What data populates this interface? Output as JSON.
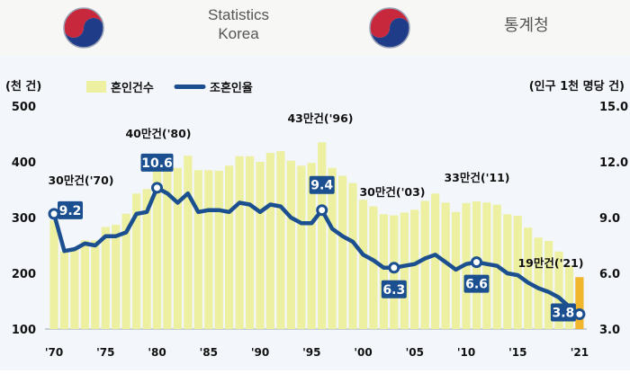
{
  "header": {
    "org_line1": "Statistics",
    "org_line2": "Korea",
    "org_korean": "통계청"
  },
  "chart_data": {
    "type": "bar",
    "left_axis_label": "(천 건)",
    "right_axis_label": "(인구 1천 명당 건)",
    "legend": {
      "bars": "혼인건수",
      "line": "조혼인율",
      "placement": "top-left"
    },
    "ylim_left": [
      100,
      500
    ],
    "ylim_right": [
      3.0,
      15.0
    ],
    "left_ticks": [
      "100",
      "200",
      "300",
      "400",
      "500"
    ],
    "right_ticks": [
      "3.0",
      "6.0",
      "9.0",
      "12.0",
      "15.0"
    ],
    "x_tick_labels": [
      "'70",
      "'75",
      "'80",
      "'85",
      "'90",
      "'95",
      "'00",
      "'05",
      "'10",
      "'15",
      "'21"
    ],
    "years": [
      1970,
      1971,
      1972,
      1973,
      1974,
      1975,
      1976,
      1977,
      1978,
      1979,
      1980,
      1981,
      1982,
      1983,
      1984,
      1985,
      1986,
      1987,
      1988,
      1989,
      1990,
      1991,
      1992,
      1993,
      1994,
      1995,
      1996,
      1997,
      1998,
      1999,
      2000,
      2001,
      2002,
      2003,
      2004,
      2005,
      2006,
      2007,
      2008,
      2009,
      2010,
      2011,
      2012,
      2013,
      2014,
      2015,
      2016,
      2017,
      2018,
      2019,
      2020,
      2021
    ],
    "marriages": [
      295,
      239,
      244,
      259,
      259,
      283,
      287,
      307,
      343,
      351,
      403,
      396,
      389,
      411,
      385,
      385,
      384,
      393,
      410,
      410,
      400,
      416,
      419,
      402,
      393,
      398,
      435,
      389,
      375,
      362,
      332,
      320,
      306,
      304,
      309,
      314,
      330,
      343,
      327,
      310,
      326,
      329,
      327,
      323,
      306,
      303,
      282,
      264,
      258,
      239,
      214,
      193
    ],
    "crude_rate": [
      9.2,
      7.2,
      7.3,
      7.6,
      7.5,
      8.0,
      8.0,
      8.2,
      9.2,
      9.3,
      10.6,
      10.3,
      9.8,
      10.3,
      9.3,
      9.4,
      9.4,
      9.3,
      9.8,
      9.7,
      9.3,
      9.7,
      9.6,
      9.0,
      8.7,
      8.7,
      9.4,
      8.4,
      8.0,
      7.7,
      7.0,
      6.7,
      6.3,
      6.3,
      6.4,
      6.5,
      6.8,
      7.0,
      6.6,
      6.2,
      6.5,
      6.6,
      6.5,
      6.4,
      6.0,
      5.9,
      5.5,
      5.2,
      5.0,
      4.7,
      4.2,
      3.8
    ],
    "highlight_year": 2021,
    "colors": {
      "bar": "#ecf0a0",
      "bar_highlight": "#f2b62c",
      "line": "#1b4f8f",
      "label_box": "#1b4f8f",
      "label_text": "#ffffff"
    },
    "bar_annotations": [
      {
        "year": 1970,
        "text": "30만건('70)"
      },
      {
        "year": 1980,
        "text": "40만건('80)"
      },
      {
        "year": 1996,
        "text": "43만건('96)"
      },
      {
        "year": 2003,
        "text": "30만건('03)"
      },
      {
        "year": 2011,
        "text": "33만건('11)"
      },
      {
        "year": 2021,
        "text": "19만건('21)"
      }
    ],
    "rate_labels": [
      {
        "year": 1970,
        "value": "9.2"
      },
      {
        "year": 1980,
        "value": "10.6"
      },
      {
        "year": 1996,
        "value": "9.4"
      },
      {
        "year": 2003,
        "value": "6.3"
      },
      {
        "year": 2011,
        "value": "6.6"
      },
      {
        "year": 2021,
        "value": "3.8"
      }
    ]
  }
}
